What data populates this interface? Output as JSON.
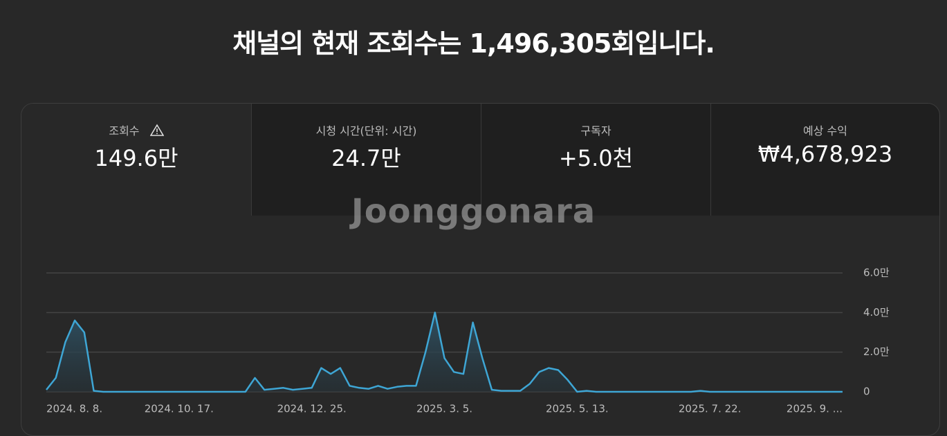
{
  "header": {
    "title": "채널의 현재 조회수는 1,496,305회입니다."
  },
  "metrics": [
    {
      "label": "조회수",
      "value": "149.6만"
    },
    {
      "label": "시청 시간(단위: 시간)",
      "value": "24.7만"
    },
    {
      "label": "구독자",
      "value": "+5.0천"
    },
    {
      "label": "예상 수익",
      "value": "₩4,678,923"
    }
  ],
  "watermark": "Joonggonara",
  "chart_data": {
    "type": "line",
    "color": "#3ea6d5",
    "grid": true,
    "categories": [
      "2024. 8. 8.",
      null,
      null,
      null,
      null,
      null,
      null,
      null,
      null,
      null,
      null,
      null,
      null,
      null,
      "2024. 10. 17.",
      null,
      null,
      null,
      null,
      null,
      null,
      null,
      null,
      null,
      null,
      null,
      null,
      null,
      "2024. 12. 25.",
      null,
      null,
      null,
      null,
      null,
      null,
      null,
      null,
      null,
      null,
      null,
      null,
      null,
      "2025. 3. 5.",
      null,
      null,
      null,
      null,
      null,
      null,
      null,
      null,
      null,
      null,
      null,
      null,
      null,
      "2025. 5. 13.",
      null,
      null,
      null,
      null,
      null,
      null,
      null,
      null,
      null,
      null,
      null,
      null,
      null,
      "2025. 7. 22.",
      null,
      null,
      null,
      null,
      null,
      null,
      null,
      null,
      null,
      null,
      null,
      null,
      null,
      "2025. 9. ..."
    ],
    "values": [
      1000,
      7000,
      25000,
      36000,
      30000,
      500,
      0,
      0,
      0,
      0,
      0,
      0,
      0,
      0,
      0,
      0,
      0,
      0,
      0,
      0,
      0,
      0,
      7000,
      1000,
      1500,
      2000,
      1000,
      1500,
      2000,
      12000,
      9000,
      12000,
      3000,
      2000,
      1500,
      3000,
      1500,
      2500,
      3000,
      3000,
      20000,
      40000,
      17000,
      10000,
      9000,
      35000,
      17000,
      1000,
      500,
      500,
      500,
      4000,
      10000,
      12000,
      11000,
      6000,
      0,
      500,
      0,
      0,
      0,
      0,
      0,
      0,
      0,
      0,
      0,
      0,
      0,
      500,
      0,
      0,
      0,
      0,
      0,
      0,
      0,
      0,
      0,
      0,
      0,
      0,
      0,
      0,
      0
    ],
    "ylim": [
      0,
      60000
    ],
    "yticks": [
      0,
      {
        "value": 20000,
        "label": "2.0만"
      },
      {
        "value": 40000,
        "label": "4.0만"
      },
      {
        "value": 60000,
        "label": "6.0만"
      }
    ]
  }
}
